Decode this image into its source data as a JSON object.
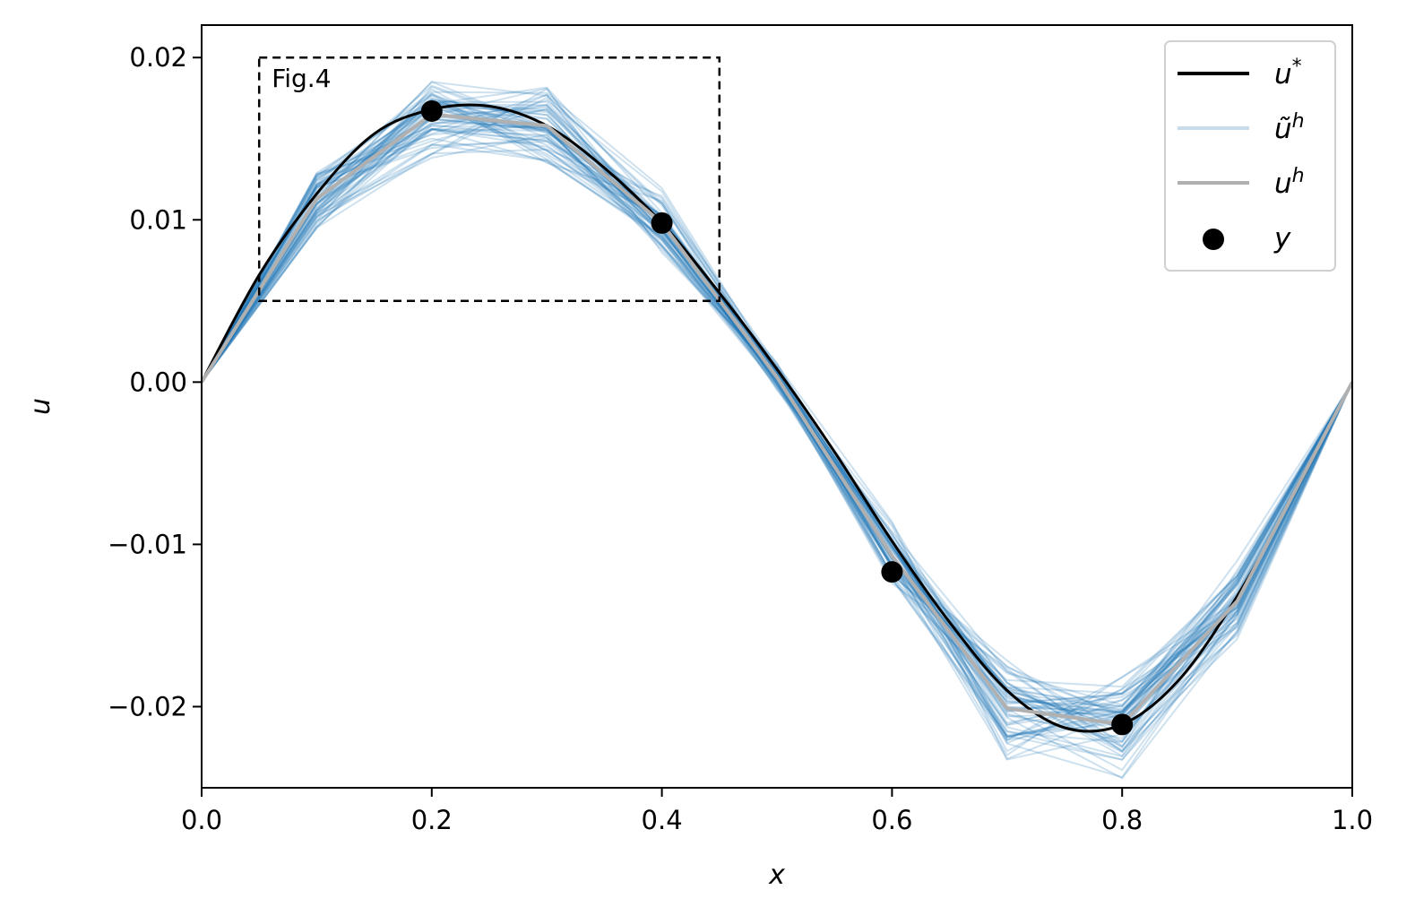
{
  "chart_data": {
    "type": "line",
    "title": "",
    "xlabel": "x",
    "ylabel": "u",
    "xlim": [
      0.0,
      1.0
    ],
    "ylim": [
      -0.025,
      0.022
    ],
    "xticks": [
      "0.0",
      "0.2",
      "0.4",
      "0.6",
      "0.8",
      "1.0"
    ],
    "xtick_values": [
      0.0,
      0.2,
      0.4,
      0.6,
      0.8,
      1.0
    ],
    "yticks": [
      "0.02",
      "0.01",
      "0.00",
      "−0.01",
      "−0.02"
    ],
    "ytick_values": [
      0.02,
      0.01,
      0.0,
      -0.01,
      -0.02
    ],
    "grid": false,
    "legend_position": "top-right",
    "series": [
      {
        "name": "u*",
        "kind": "exact",
        "color": "#000000",
        "x": [
          0.0,
          0.05,
          0.1,
          0.15,
          0.2,
          0.25,
          0.3,
          0.35,
          0.4,
          0.45,
          0.5,
          0.55,
          0.6,
          0.65,
          0.7,
          0.75,
          0.8,
          0.85,
          0.9,
          0.95,
          1.0
        ],
        "y": [
          0.0,
          0.0066,
          0.0116,
          0.0153,
          0.0168,
          0.017,
          0.0158,
          0.0132,
          0.0098,
          0.0055,
          0.0008,
          -0.0043,
          -0.0098,
          -0.0148,
          -0.019,
          -0.0213,
          -0.0211,
          -0.0183,
          -0.0132,
          -0.0068,
          0.0
        ]
      },
      {
        "name": "ũh",
        "kind": "ensemble",
        "color": "#1f77b4",
        "count": 60
      },
      {
        "name": "uh",
        "kind": "approximation",
        "color": "#b0b0b0",
        "x": [
          0.0,
          0.1,
          0.2,
          0.3,
          0.4,
          0.5,
          0.6,
          0.7,
          0.8,
          0.9,
          1.0
        ],
        "y": [
          0.0,
          0.0113,
          0.0165,
          0.0158,
          0.0098,
          0.0003,
          -0.0107,
          -0.0201,
          -0.0211,
          -0.0135,
          0.0
        ]
      },
      {
        "name": "y",
        "kind": "observations",
        "color": "#000000",
        "x": [
          0.2,
          0.4,
          0.6,
          0.8
        ],
        "y": [
          0.0167,
          0.0098,
          -0.0117,
          -0.0211
        ]
      }
    ],
    "annotations": [
      {
        "text": "Fig.4",
        "box": {
          "x0": 0.05,
          "x1": 0.45,
          "y0": 0.005,
          "y1": 0.02
        },
        "style": "dashed"
      }
    ]
  },
  "legend": {
    "items": [
      {
        "base": "u",
        "mark": "*",
        "kind": "line",
        "color": "#000000"
      },
      {
        "base": "ũ",
        "mark": "h",
        "kind": "line",
        "color": "#c6dcec"
      },
      {
        "base": "u",
        "mark": "h",
        "kind": "line",
        "color": "#b0b0b0"
      },
      {
        "base": "y",
        "mark": "",
        "kind": "marker",
        "color": "#000000"
      }
    ]
  }
}
